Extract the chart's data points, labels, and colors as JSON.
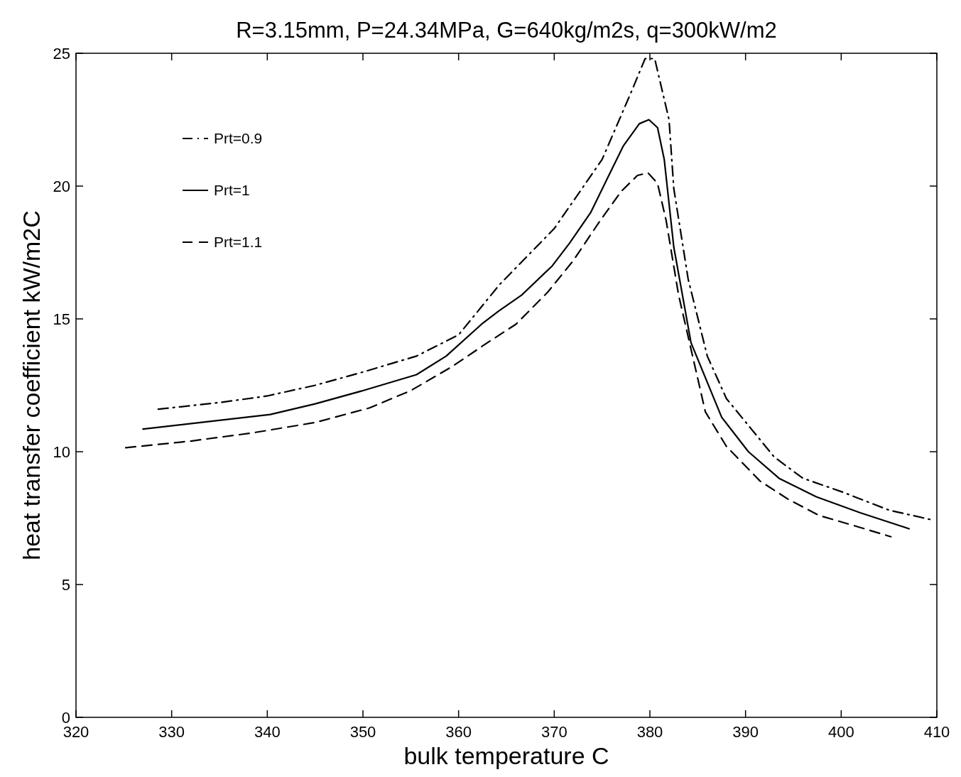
{
  "chart_data": {
    "type": "line",
    "title": "R=3.15mm, P=24.34MPa, G=640kg/m2s, q=300kW/m2",
    "xlabel": "bulk temperature C",
    "ylabel": "heat transfer coefficient kW/m2C",
    "xlim": [
      320,
      410
    ],
    "xticks": [
      320,
      330,
      340,
      350,
      360,
      370,
      380,
      390,
      400,
      410
    ],
    "ylim": [
      0,
      25
    ],
    "yticks": [
      0,
      5,
      10,
      15,
      20,
      25
    ],
    "grid": false,
    "legend": "top left",
    "marker": "none",
    "series": [
      {
        "name": "Prt=0.9",
        "color": "#000000",
        "line_style": "dashdot",
        "x": [
          328.6,
          335,
          340,
          345,
          350,
          355.6,
          360,
          364.3,
          370,
          375,
          378,
          379.5,
          380.5,
          382,
          382.5,
          384,
          386,
          388,
          390.5,
          393,
          396,
          400,
          405,
          409.3
        ],
        "values": [
          11.6,
          11.85,
          12.1,
          12.5,
          13.0,
          13.6,
          14.4,
          16.3,
          18.4,
          21.0,
          23.5,
          24.8,
          24.8,
          22.5,
          19.9,
          16.5,
          13.6,
          12.0,
          10.9,
          9.8,
          9.0,
          8.5,
          7.8,
          7.45
        ]
      },
      {
        "name": "Prt=1",
        "color": "#000000",
        "line_style": "solid",
        "x": [
          327,
          333,
          340.3,
          345,
          350,
          355.6,
          358.7,
          362.4,
          364.2,
          366.6,
          369.8,
          371.6,
          373.8,
          377.2,
          378.9,
          379.9,
          380.8,
          381.5,
          382.5,
          384.3,
          387.5,
          390.3,
          393.5,
          397.4,
          402,
          407.1
        ],
        "values": [
          10.85,
          11.1,
          11.4,
          11.8,
          12.3,
          12.9,
          13.6,
          14.8,
          15.3,
          15.9,
          17.0,
          17.85,
          19.0,
          21.5,
          22.35,
          22.5,
          22.2,
          21.0,
          17.7,
          14.1,
          11.3,
          10.0,
          9.0,
          8.3,
          7.7,
          7.1
        ]
      },
      {
        "name": "Prt=1.1",
        "color": "#000000",
        "line_style": "dashed",
        "x": [
          325.2,
          332,
          338.3,
          345,
          350.7,
          355,
          359.3,
          363,
          366,
          369.3,
          372,
          374.8,
          377,
          378.7,
          379.8,
          380.8,
          381.7,
          383,
          385.8,
          388,
          391.5,
          394.5,
          397.7,
          401.5,
          405.2
        ],
        "values": [
          10.15,
          10.4,
          10.7,
          11.1,
          11.65,
          12.3,
          13.2,
          14.1,
          14.8,
          16.0,
          17.2,
          18.7,
          19.8,
          20.4,
          20.5,
          20.1,
          18.7,
          15.9,
          11.5,
          10.2,
          8.9,
          8.2,
          7.6,
          7.2,
          6.8
        ]
      }
    ]
  }
}
